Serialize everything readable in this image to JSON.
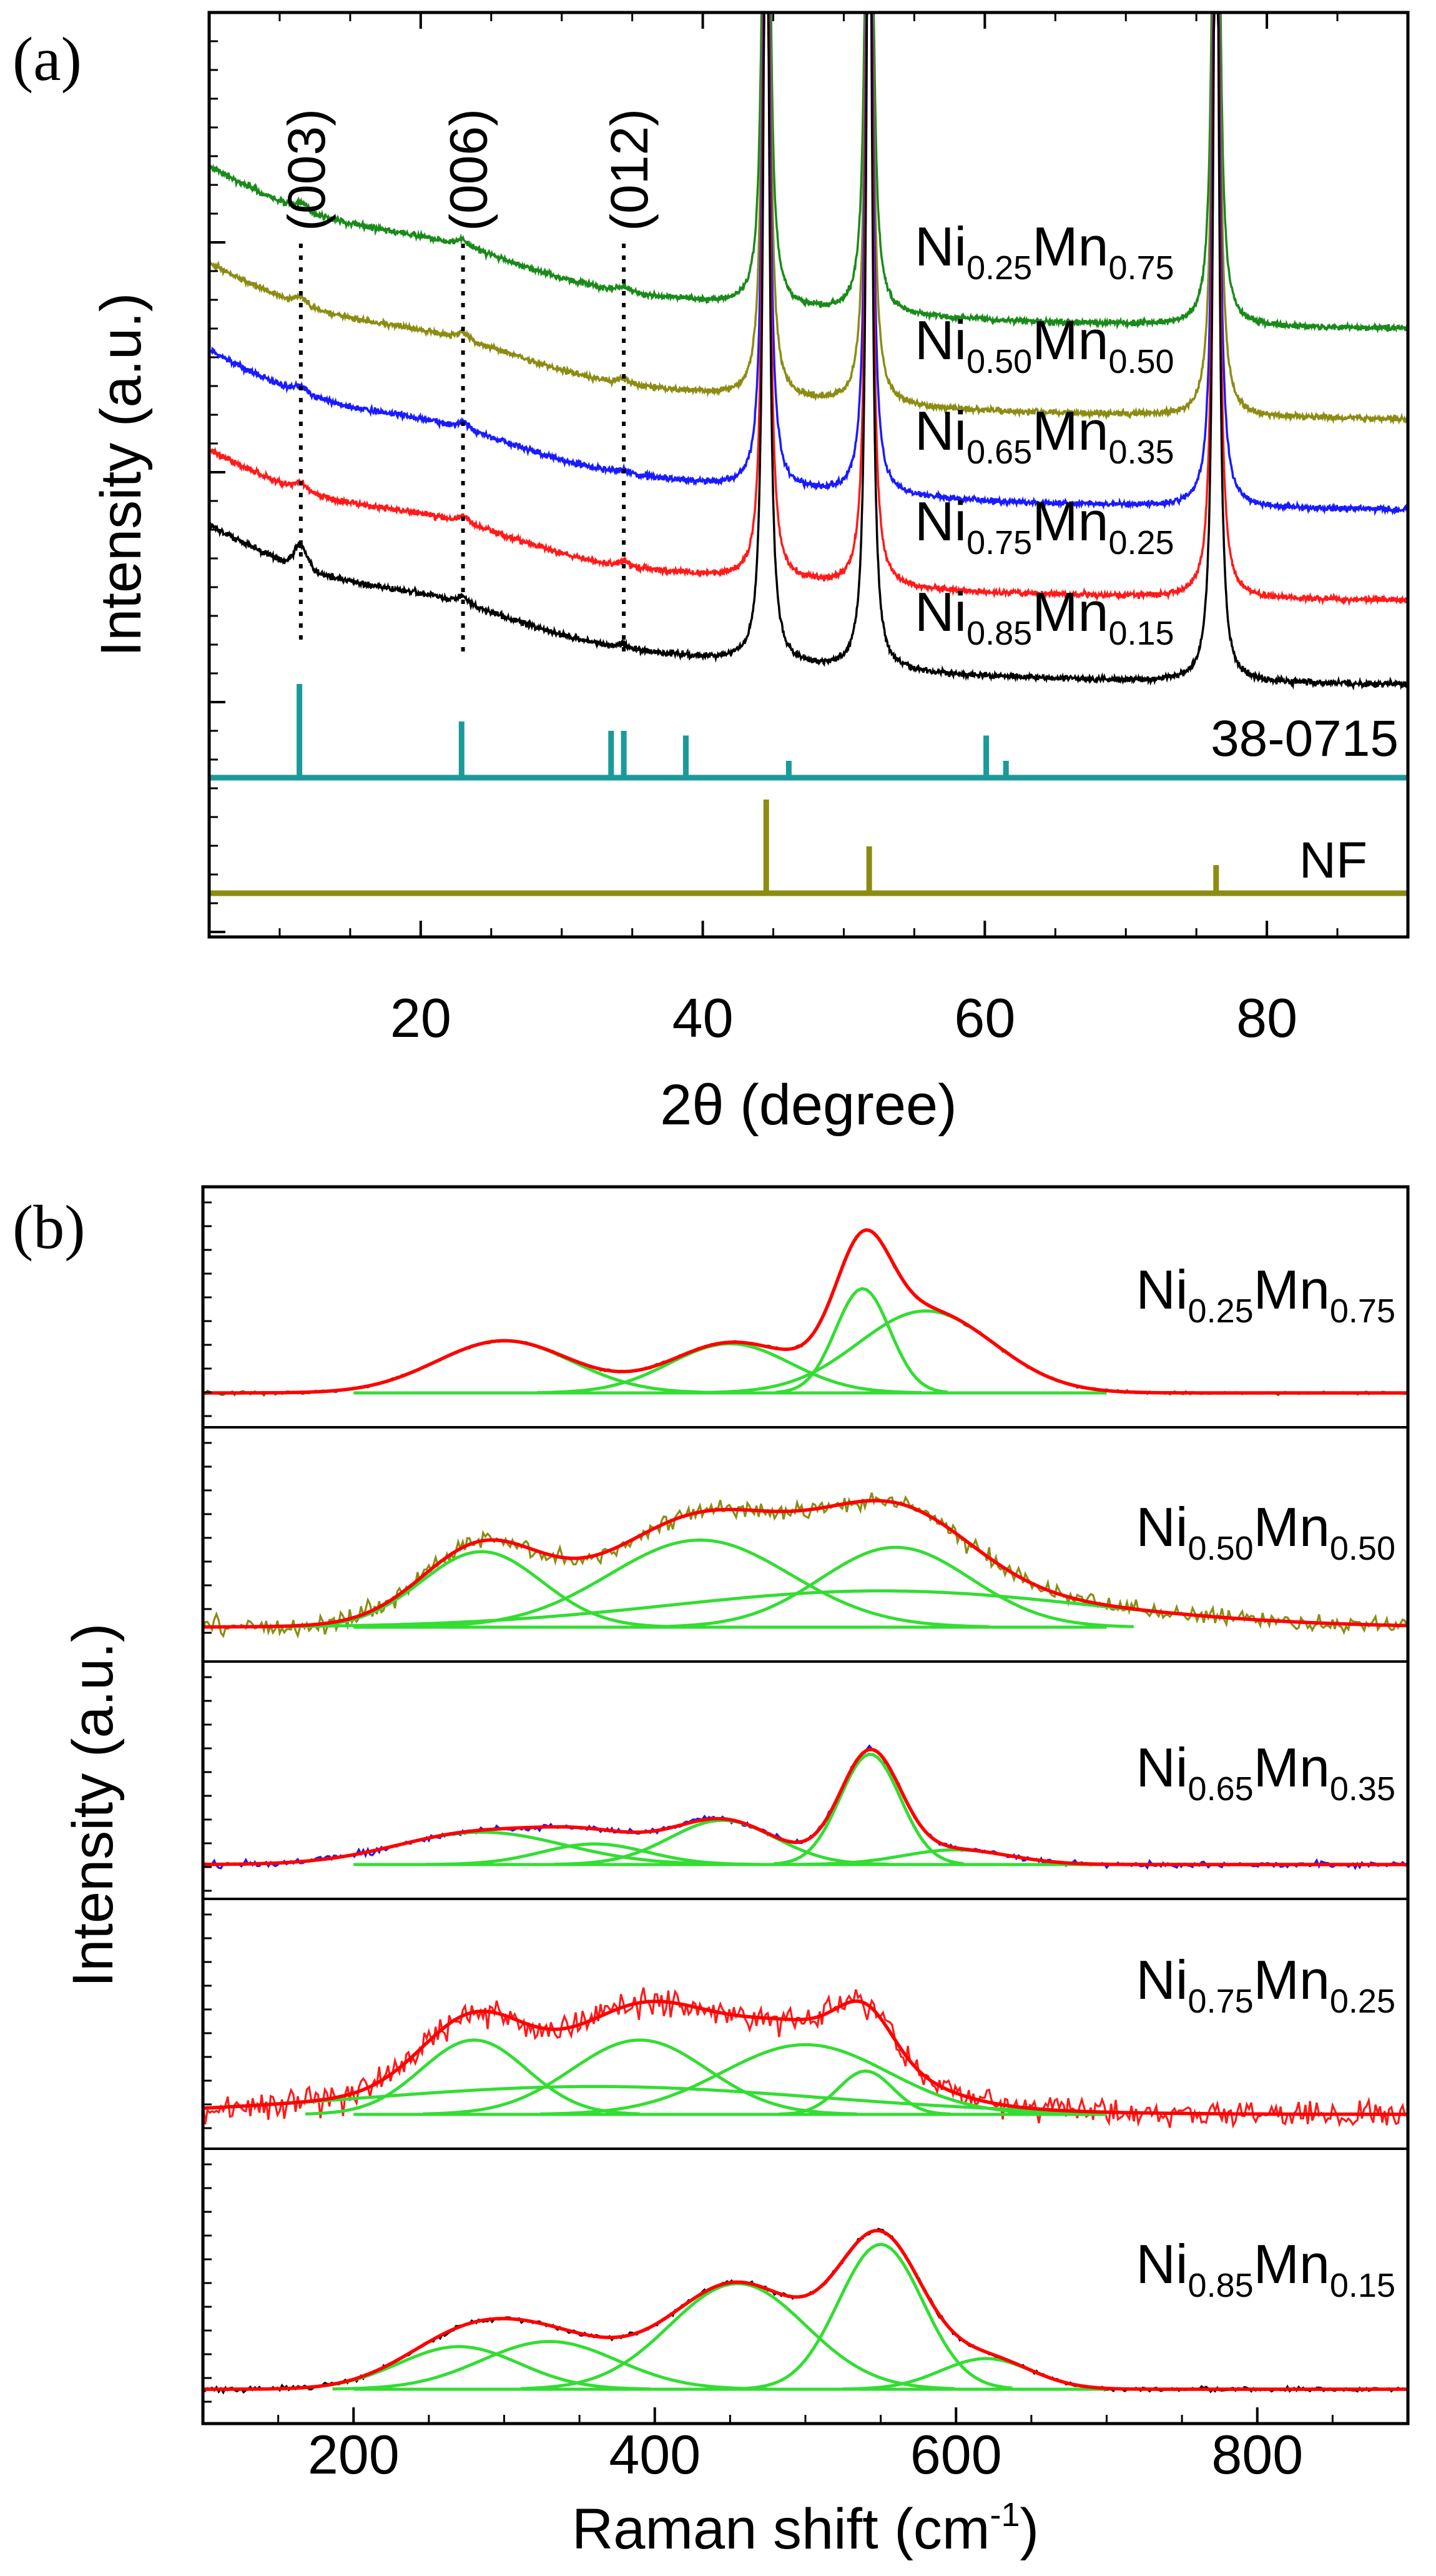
{
  "chart_data": [
    {
      "type": "line",
      "panel_label": "(a)",
      "xlabel": "2θ (degree)",
      "ylabel": "Intensity (a.u.)",
      "xlim": [
        5,
        90
      ],
      "xticks": [
        20,
        40,
        60,
        80
      ],
      "series": [
        {
          "name": "Ni0.25Mn0.75",
          "label_main": [
            "Ni",
            "Mn"
          ],
          "label_sub": [
            "0.25",
            "0.75"
          ],
          "color": "#1a8a1a",
          "offset": 4,
          "peak_scale": 1.0
        },
        {
          "name": "Ni0.50Mn0.50",
          "label_main": [
            "Ni",
            "Mn"
          ],
          "label_sub": [
            "0.50",
            "0.50"
          ],
          "color": "#8c8c14",
          "offset": 3,
          "peak_scale": 1.0
        },
        {
          "name": "Ni0.65Mn0.35",
          "label_main": [
            "Ni",
            "Mn"
          ],
          "label_sub": [
            "0.65",
            "0.35"
          ],
          "color": "#1a1aff",
          "offset": 2,
          "peak_scale": 1.0
        },
        {
          "name": "Ni0.75Mn0.25",
          "label_main": [
            "Ni",
            "Mn"
          ],
          "label_sub": [
            "0.75",
            "0.25"
          ],
          "color": "#ff1a1a",
          "offset": 1,
          "peak_scale": 1.0
        },
        {
          "name": "Ni0.85Mn0.15",
          "label_main": [
            "Ni",
            "Mn"
          ],
          "label_sub": [
            "0.85",
            "0.15"
          ],
          "color": "#000000",
          "offset": 0,
          "peak_scale": 1.0
        }
      ],
      "substrate_peaks": [
        44.5,
        51.8,
        76.4
      ],
      "hkl_annotations": [
        {
          "label": "(003)",
          "x": 11.5
        },
        {
          "label": "(006)",
          "x": 23.0
        },
        {
          "label": "(012)",
          "x": 34.4
        }
      ],
      "reference_patterns": [
        {
          "name": "38-0715",
          "color": "#1a9a9a",
          "peaks": [
            [
              11.4,
              1.0
            ],
            [
              22.9,
              0.6
            ],
            [
              33.5,
              0.5
            ],
            [
              34.4,
              0.5
            ],
            [
              38.8,
              0.45
            ],
            [
              46.1,
              0.18
            ],
            [
              60.1,
              0.45
            ],
            [
              61.5,
              0.18
            ]
          ]
        },
        {
          "name": "NF",
          "color": "#8c8c14",
          "peaks": [
            [
              44.5,
              1.0
            ],
            [
              51.8,
              0.5
            ],
            [
              76.4,
              0.3
            ]
          ]
        }
      ]
    },
    {
      "type": "line",
      "panel_label": "(b)",
      "xlabel": "Raman shift (cm",
      "xlabel_sup": "-1",
      "xlabel_end": ")",
      "ylabel": "Intensity (a.u.)",
      "xlim": [
        100,
        900
      ],
      "xticks": [
        200,
        400,
        600,
        800
      ],
      "fit_color": "#ff0000",
      "component_color": "#33dd33",
      "series": [
        {
          "name": "Ni0.25Mn0.75",
          "label_main": [
            "Ni",
            "Mn"
          ],
          "label_sub": [
            "0.25",
            "0.75"
          ],
          "color": "#1a8a1a",
          "noise": 0.015,
          "peaks": [
            [
              300,
              45,
              0.35
            ],
            [
              450,
              40,
              0.33
            ],
            [
              538,
              18,
              0.7
            ],
            [
              580,
              45,
              0.55
            ]
          ],
          "broad": null
        },
        {
          "name": "Ni0.50Mn0.50",
          "label_main": [
            "Ni",
            "Mn"
          ],
          "label_sub": [
            "0.50",
            "0.50"
          ],
          "color": "#8c8c14",
          "noise": 0.09,
          "peaks": [
            [
              285,
              40,
              0.52
            ],
            [
              430,
              60,
              0.6
            ],
            [
              560,
              50,
              0.55
            ]
          ],
          "broad": [
            550,
            140,
            0.25
          ]
        },
        {
          "name": "Ni0.65Mn0.35",
          "label_main": [
            "Ni",
            "Mn"
          ],
          "label_sub": [
            "0.65",
            "0.35"
          ],
          "color": "#1a1aff",
          "noise": 0.03,
          "peaks": [
            [
              285,
              55,
              0.22
            ],
            [
              360,
              35,
              0.14
            ],
            [
              445,
              35,
              0.3
            ],
            [
              543,
              20,
              0.75
            ],
            [
              600,
              35,
              0.1
            ]
          ],
          "broad": null
        },
        {
          "name": "Ni0.75Mn0.25",
          "label_main": [
            "Ni",
            "Mn"
          ],
          "label_sub": [
            "0.75",
            "0.25"
          ],
          "color": "#ff1a1a",
          "noise": 0.13,
          "peaks": [
            [
              280,
              35,
              0.48
            ],
            [
              390,
              45,
              0.48
            ],
            [
              500,
              55,
              0.45
            ],
            [
              540,
              18,
              0.28
            ]
          ],
          "broad": [
            360,
            150,
            0.18
          ]
        },
        {
          "name": "Ni0.85Mn0.15",
          "label_main": [
            "Ni",
            "Mn"
          ],
          "label_sub": [
            "0.85",
            "0.15"
          ],
          "color": "#000000",
          "noise": 0.02,
          "peaks": [
            [
              270,
              40,
              0.25
            ],
            [
              330,
              45,
              0.28
            ],
            [
              455,
              45,
              0.62
            ],
            [
              550,
              28,
              0.85
            ],
            [
              620,
              30,
              0.18
            ]
          ],
          "broad": null
        }
      ]
    }
  ]
}
